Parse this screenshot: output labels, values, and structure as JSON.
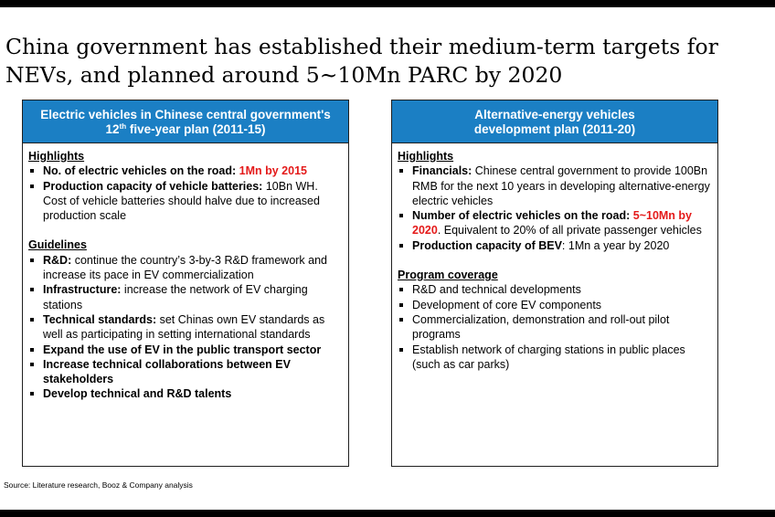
{
  "title": "China government has established their medium-term targets for NEVs, and planned around 5~10Mn PARC by 2020",
  "left": {
    "header_line1": "Electric vehicles in Chinese central government's",
    "header_num": "12",
    "header_sup": "th",
    "header_rest": " five-year plan (2011-15)",
    "highlights_title": "Highlights",
    "highlights": [
      {
        "bold": "No. of electric vehicles on the road:",
        "red": " 1Mn by 2015",
        "text": ""
      },
      {
        "bold": "Production capacity of vehicle batteries:",
        "red": "",
        "text": " 10Bn WH. Cost of vehicle batteries should halve due to increased production scale"
      }
    ],
    "guidelines_title": "Guidelines",
    "guidelines": [
      {
        "bold": "R&D:",
        "text": " continue the country’s 3-by-3 R&D framework and increase its pace in EV commercialization"
      },
      {
        "bold": "Infrastructure:",
        "text": " increase the network of EV charging stations"
      },
      {
        "bold": "Technical standards:",
        "text": " set Chinas own EV standards as well as participating in setting international standards"
      },
      {
        "bold": "Expand the use of EV in the public transport sector",
        "text": ""
      },
      {
        "bold": "Increase technical collaborations between EV stakeholders",
        "text": ""
      },
      {
        "bold": "Develop technical and R&D talents",
        "text": ""
      }
    ]
  },
  "right": {
    "header_line1": "Alternative-energy vehicles",
    "header_line2": "development plan  (2011-20)",
    "highlights_title": "Highlights",
    "highlights": [
      {
        "bold": "Financials:",
        "red": "",
        "text": " Chinese central government to provide 100Bn RMB for the next 10 years in developing alternative-energy electric vehicles"
      },
      {
        "bold": "Number of electric vehicles on the road:",
        "red": " 5~10Mn by 2020",
        "text": ". Equivalent to 20% of all private passenger vehicles"
      },
      {
        "bold": "Production capacity of BEV",
        "red": "",
        "text": ": 1Mn a year by 2020"
      }
    ],
    "program_title": "Program coverage",
    "program": [
      "R&D and technical developments",
      "Development of core EV components",
      "Commercialization, demonstration and roll-out pilot programs",
      "Establish network of charging stations in public places (such as car parks)"
    ]
  },
  "source": "Source:    Literature research, Booz & Company analysis",
  "colors": {
    "header_blue": "#1b7fc4",
    "highlight_red": "#e41a1a"
  }
}
